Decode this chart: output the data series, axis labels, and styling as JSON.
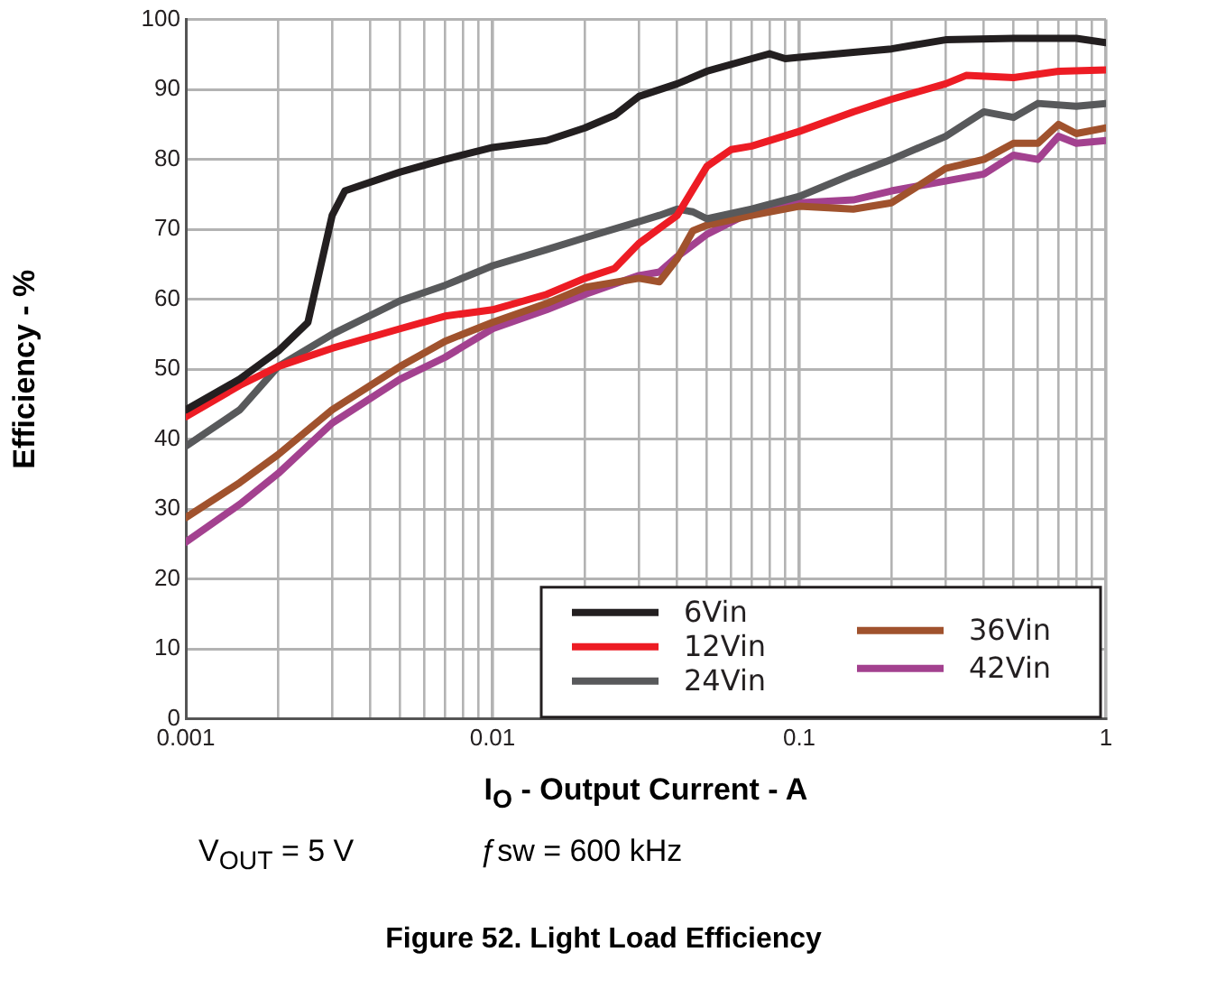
{
  "chart_data": {
    "type": "line",
    "title": "Figure 52. Light Load Efficiency",
    "xlabel": "I$_{O}$ - Output Current - A",
    "ylabel": "Efficiency - %",
    "annotations": [
      "V$_{OUT}$ = 5 V",
      "ƒsw = 600 kHz"
    ],
    "log": "x",
    "grid": true,
    "legend": "bottom right",
    "marker": "none",
    "line_style": "solid",
    "xlim": [
      0.001,
      1
    ],
    "ylim": [
      0,
      100
    ],
    "xticks": [
      0.001,
      {
        "value": 0.002,
        "label": null
      },
      {
        "value": 0.003,
        "label": null
      },
      {
        "value": 0.004,
        "label": null
      },
      {
        "value": 0.005,
        "label": null
      },
      {
        "value": 0.006,
        "label": null
      },
      {
        "value": 0.007,
        "label": null
      },
      {
        "value": 0.008,
        "label": null
      },
      {
        "value": 0.009,
        "label": null
      },
      0.01,
      {
        "value": 0.02,
        "label": null
      },
      {
        "value": 0.03,
        "label": null
      },
      {
        "value": 0.04,
        "label": null
      },
      {
        "value": 0.05,
        "label": null
      },
      {
        "value": 0.06,
        "label": null
      },
      {
        "value": 0.07,
        "label": null
      },
      {
        "value": 0.08,
        "label": null
      },
      {
        "value": 0.09,
        "label": null
      },
      0.1,
      {
        "value": 0.2,
        "label": null
      },
      {
        "value": 0.3,
        "label": null
      },
      {
        "value": 0.4,
        "label": null
      },
      {
        "value": 0.5,
        "label": null
      },
      {
        "value": 0.6,
        "label": null
      },
      {
        "value": 0.7,
        "label": null
      },
      {
        "value": 0.8,
        "label": null
      },
      {
        "value": 0.9,
        "label": null
      },
      1
    ],
    "yticks": [
      0,
      10,
      20,
      30,
      40,
      50,
      60,
      70,
      80,
      90,
      100
    ],
    "series": [
      {
        "name": "6Vin",
        "color": "#231f20",
        "x": [
          0.001,
          0.0015,
          0.002,
          0.0025,
          0.003,
          0.0033,
          0.005,
          0.007,
          0.01,
          0.015,
          0.02,
          0.025,
          0.03,
          0.04,
          0.05,
          0.07,
          0.08,
          0.09,
          0.1,
          0.15,
          0.2,
          0.3,
          0.5,
          0.8,
          1
        ],
        "values": [
          44.2,
          48.6,
          52.6,
          56.7,
          72,
          75.5,
          78.2,
          80,
          81.7,
          82.7,
          84.5,
          86.3,
          89,
          90.8,
          92.6,
          94.4,
          95.1,
          94.4,
          94.6,
          95.3,
          95.8,
          97.1,
          97.3,
          97.3,
          96.7
        ]
      },
      {
        "name": "12Vin",
        "color": "#ed1c24",
        "x": [
          0.001,
          0.0015,
          0.002,
          0.003,
          0.005,
          0.007,
          0.01,
          0.015,
          0.02,
          0.025,
          0.03,
          0.04,
          0.05,
          0.06,
          0.07,
          0.1,
          0.15,
          0.2,
          0.3,
          0.35,
          0.5,
          0.7,
          1
        ],
        "values": [
          43.2,
          47.7,
          50.4,
          53,
          55.8,
          57.6,
          58.5,
          60.7,
          63,
          64.4,
          68,
          72,
          79,
          81.4,
          81.9,
          84,
          86.8,
          88.6,
          90.8,
          92,
          91.7,
          92.6,
          92.8
        ]
      },
      {
        "name": "24Vin",
        "color": "#58595b",
        "x": [
          0.001,
          0.0015,
          0.002,
          0.003,
          0.005,
          0.007,
          0.01,
          0.015,
          0.02,
          0.03,
          0.035,
          0.04,
          0.045,
          0.05,
          0.07,
          0.1,
          0.15,
          0.2,
          0.3,
          0.4,
          0.5,
          0.6,
          0.8,
          1
        ],
        "values": [
          39,
          44.2,
          50.4,
          55,
          59.8,
          62,
          64.8,
          67.1,
          68.8,
          71.1,
          72,
          72.9,
          72.5,
          71.5,
          72.9,
          74.7,
          77.9,
          80,
          83.3,
          86.8,
          86,
          88,
          87.6,
          88
        ]
      },
      {
        "name": "36Vin",
        "color": "#a0522d",
        "x": [
          0.001,
          0.0015,
          0.002,
          0.003,
          0.005,
          0.007,
          0.01,
          0.015,
          0.02,
          0.03,
          0.035,
          0.04,
          0.045,
          0.05,
          0.07,
          0.1,
          0.15,
          0.2,
          0.3,
          0.4,
          0.5,
          0.6,
          0.7,
          0.8,
          1
        ],
        "values": [
          28.8,
          33.8,
          37.8,
          44.2,
          50.4,
          54,
          56.7,
          59.4,
          61.7,
          63,
          62.5,
          65.8,
          69.8,
          70.6,
          72,
          73.3,
          72.9,
          73.8,
          78.7,
          80,
          82.3,
          82.3,
          85,
          83.7,
          84.5
        ]
      },
      {
        "name": "42Vin",
        "color": "#a3418f",
        "x": [
          0.001,
          0.0015,
          0.002,
          0.003,
          0.005,
          0.007,
          0.01,
          0.015,
          0.02,
          0.03,
          0.035,
          0.04,
          0.05,
          0.07,
          0.1,
          0.15,
          0.2,
          0.3,
          0.4,
          0.5,
          0.6,
          0.7,
          0.8,
          1
        ],
        "values": [
          25.3,
          30.7,
          35.1,
          42.3,
          48.6,
          51.7,
          55.8,
          58.5,
          60.7,
          63.4,
          63.9,
          66.1,
          69.3,
          72.5,
          73.8,
          74.2,
          75.5,
          76.9,
          77.9,
          80.6,
          80,
          83.3,
          82.3,
          82.7
        ]
      }
    ]
  }
}
